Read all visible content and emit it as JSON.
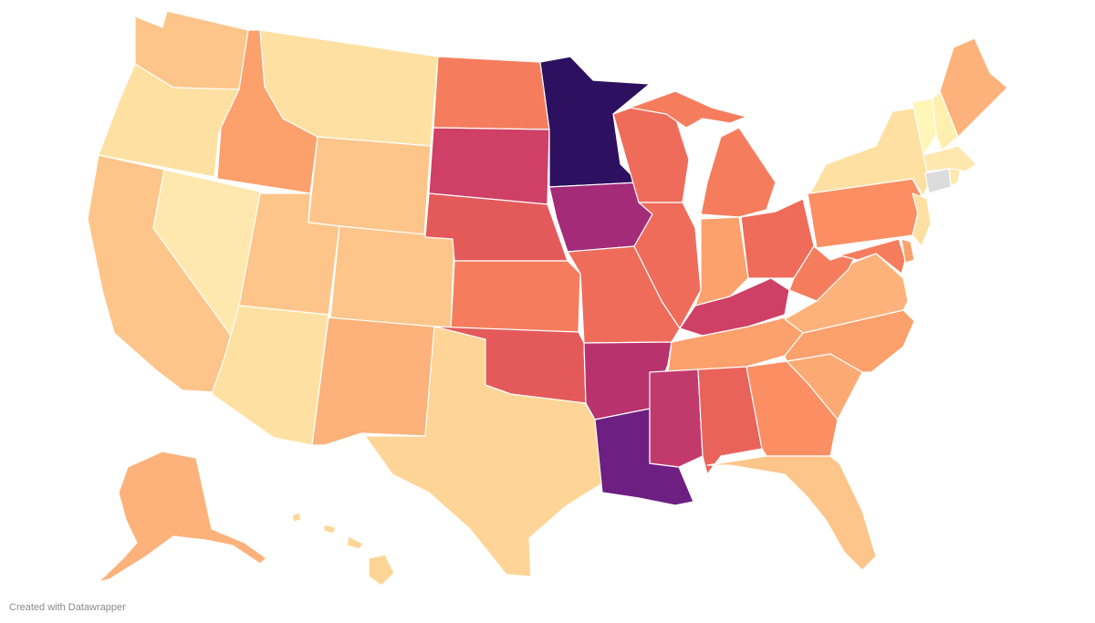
{
  "map": {
    "type": "choropleth",
    "region": "United States",
    "palette": [
      "#fffbc4",
      "#fee1a2",
      "#fdc58a",
      "#fca06c",
      "#f57d5e",
      "#e45a5a",
      "#cf3f66",
      "#a32b78",
      "#6d1f82",
      "#2d1160"
    ],
    "no_data_color": "#dcdcdc",
    "states": [
      {
        "id": "WA",
        "fill": "#fdc58a"
      },
      {
        "id": "OR",
        "fill": "#fee1a2"
      },
      {
        "id": "CA",
        "fill": "#fdc58a"
      },
      {
        "id": "NV",
        "fill": "#fee8ad"
      },
      {
        "id": "ID",
        "fill": "#fca06c"
      },
      {
        "id": "MT",
        "fill": "#fee1a2"
      },
      {
        "id": "WY",
        "fill": "#fdc58a"
      },
      {
        "id": "UT",
        "fill": "#fdc58a"
      },
      {
        "id": "AZ",
        "fill": "#fee1a2"
      },
      {
        "id": "CO",
        "fill": "#fdc58a"
      },
      {
        "id": "NM",
        "fill": "#fcb27a"
      },
      {
        "id": "TX",
        "fill": "#fed596"
      },
      {
        "id": "ND",
        "fill": "#f57d5e"
      },
      {
        "id": "SD",
        "fill": "#cf3f66"
      },
      {
        "id": "NE",
        "fill": "#e45a5a"
      },
      {
        "id": "KS",
        "fill": "#f57d5e"
      },
      {
        "id": "OK",
        "fill": "#e45a5a"
      },
      {
        "id": "MN",
        "fill": "#2d1160"
      },
      {
        "id": "IA",
        "fill": "#a32b78"
      },
      {
        "id": "MO",
        "fill": "#ef6c5b"
      },
      {
        "id": "AR",
        "fill": "#b8336e"
      },
      {
        "id": "LA",
        "fill": "#6d1f82"
      },
      {
        "id": "WI",
        "fill": "#ef6c5b"
      },
      {
        "id": "IL",
        "fill": "#ef6c5b"
      },
      {
        "id": "MI",
        "fill": "#f57d5e"
      },
      {
        "id": "IN",
        "fill": "#fca06c"
      },
      {
        "id": "OH",
        "fill": "#ef6c5b"
      },
      {
        "id": "KY",
        "fill": "#cf3f66"
      },
      {
        "id": "TN",
        "fill": "#fca06c"
      },
      {
        "id": "MS",
        "fill": "#c23a6c"
      },
      {
        "id": "AL",
        "fill": "#ea635a"
      },
      {
        "id": "GA",
        "fill": "#fb8f63"
      },
      {
        "id": "FL",
        "fill": "#fdc58a"
      },
      {
        "id": "SC",
        "fill": "#fcaa74"
      },
      {
        "id": "NC",
        "fill": "#fca06c"
      },
      {
        "id": "VA",
        "fill": "#fcb27a"
      },
      {
        "id": "WV",
        "fill": "#f57d5e"
      },
      {
        "id": "PA",
        "fill": "#fb8f63"
      },
      {
        "id": "NY",
        "fill": "#fee1a2"
      },
      {
        "id": "VT",
        "fill": "#fff6b8"
      },
      {
        "id": "NH",
        "fill": "#fff0b0"
      },
      {
        "id": "ME",
        "fill": "#fcb27a"
      },
      {
        "id": "MA",
        "fill": "#fee8ad"
      },
      {
        "id": "CT",
        "fill": "#dcdcdc"
      },
      {
        "id": "RI",
        "fill": "#fee8ad"
      },
      {
        "id": "NJ",
        "fill": "#fee1a2"
      },
      {
        "id": "DE",
        "fill": "#fca06c"
      },
      {
        "id": "MD",
        "fill": "#f57d5e"
      },
      {
        "id": "AK",
        "fill": "#fcb27a"
      },
      {
        "id": "HI",
        "fill": "#fed596"
      }
    ]
  },
  "footer": {
    "credit": "Created with Datawrapper"
  }
}
